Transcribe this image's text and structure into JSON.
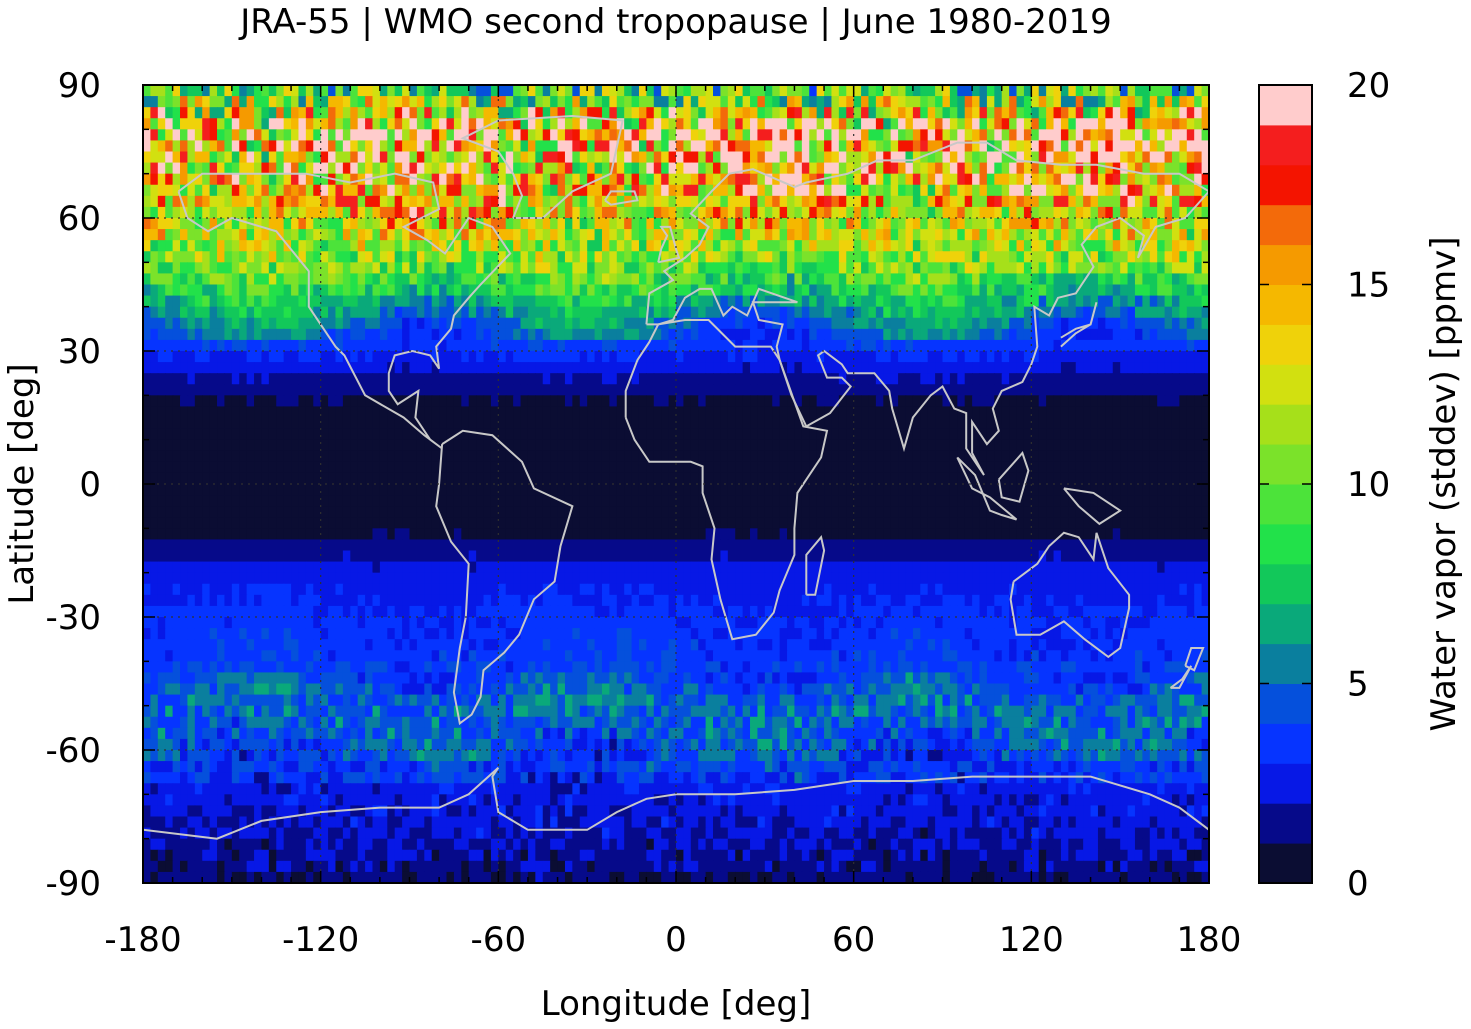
{
  "chart_data": {
    "type": "heatmap",
    "title": "JRA-55 | WMO second tropopause | June 1980-2019",
    "xlabel": "Longitude [deg]",
    "ylabel": "Latitude [deg]",
    "xlim": [
      -180,
      180
    ],
    "ylim": [
      -90,
      90
    ],
    "x_ticks": [
      -180,
      -120,
      -60,
      0,
      60,
      120,
      180
    ],
    "y_ticks": [
      90,
      60,
      30,
      0,
      -30,
      -60,
      -90
    ],
    "x_tick_labels": [
      "-180",
      "-120",
      "-60",
      "0",
      "60",
      "120",
      "180"
    ],
    "y_tick_labels": [
      "90",
      "60",
      "30",
      "0",
      "-30",
      "-60",
      "-90"
    ],
    "grid": true,
    "colorbar": {
      "label": "Water vapor (stddev) [ppmv]",
      "range": [
        0,
        20
      ],
      "ticks": [
        0,
        5,
        10,
        15,
        20
      ],
      "tick_labels": [
        "0",
        "5",
        "10",
        "15",
        "20"
      ],
      "levels": 20,
      "colors": [
        "#0b0d33",
        "#060a8a",
        "#0718e6",
        "#0634ff",
        "#0550dc",
        "#0a7f9e",
        "#0aa97a",
        "#12c85a",
        "#22e14a",
        "#4ce33a",
        "#7be22a",
        "#a6e01a",
        "#d2e010",
        "#efd20a",
        "#f5b800",
        "#f59a00",
        "#f36a0a",
        "#f41400",
        "#f41e1e",
        "#ffcccc"
      ]
    },
    "zonal_profile": {
      "description_lat": [
        -90,
        -80,
        -70,
        -60,
        -50,
        -40,
        -30,
        -20,
        -10,
        0,
        10,
        20,
        30,
        40,
        50,
        60,
        70,
        80,
        90
      ],
      "values": [
        1.2,
        2.0,
        3.0,
        4.2,
        5.0,
        3.6,
        3.2,
        2.5,
        0.6,
        0.5,
        0.6,
        1.0,
        3.2,
        6.5,
        10.5,
        13.0,
        15.0,
        16.0,
        8.0
      ]
    },
    "coastline_color": "#c8c8c8"
  }
}
